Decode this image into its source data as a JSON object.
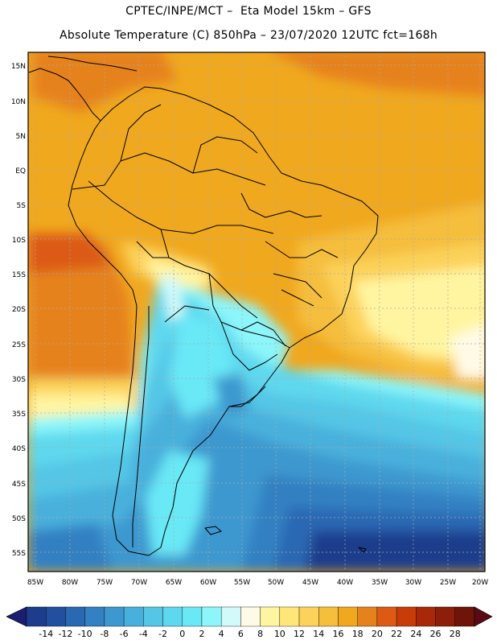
{
  "header": {
    "line1": "CPTEC/INPE/MCT –  Eta Model 15km – GFS",
    "line2": "Absolute Temperature (C) 850hPa – 23/07/2020 12UTC fct=168h"
  },
  "map": {
    "lat_labels": [
      "15N",
      "10N",
      "5N",
      "EQ",
      "5S",
      "10S",
      "15S",
      "20S",
      "25S",
      "30S",
      "35S",
      "40S",
      "45S",
      "50S",
      "55S"
    ],
    "lon_labels": [
      "85W",
      "80W",
      "75W",
      "70W",
      "65W",
      "60W",
      "55W",
      "50W",
      "45W",
      "40W",
      "35W",
      "30W",
      "25W",
      "20W"
    ]
  },
  "colorbar": {
    "labels": [
      "-14",
      "-12",
      "-10",
      "-8",
      "-6",
      "-4",
      "-2",
      "0",
      "2",
      "4",
      "6",
      "8",
      "10",
      "12",
      "14",
      "16",
      "18",
      "20",
      "22",
      "24",
      "26",
      "28"
    ],
    "colors": [
      "#1e3c8c",
      "#23509e",
      "#2a68b2",
      "#3380c2",
      "#3c98cf",
      "#48b0dc",
      "#55c6e6",
      "#5ed8ee",
      "#69e8f6",
      "#8cf6fa",
      "#d2fafa",
      "#fffae6",
      "#fff5a0",
      "#ffe678",
      "#fcd25a",
      "#f5be3c",
      "#f0a81e",
      "#e6821e",
      "#dc5a14",
      "#c83c0a",
      "#aa280a",
      "#8c1e0a",
      "#6e1409"
    ],
    "end_low": "#1a1e6e",
    "end_high": "#5a0a14"
  }
}
